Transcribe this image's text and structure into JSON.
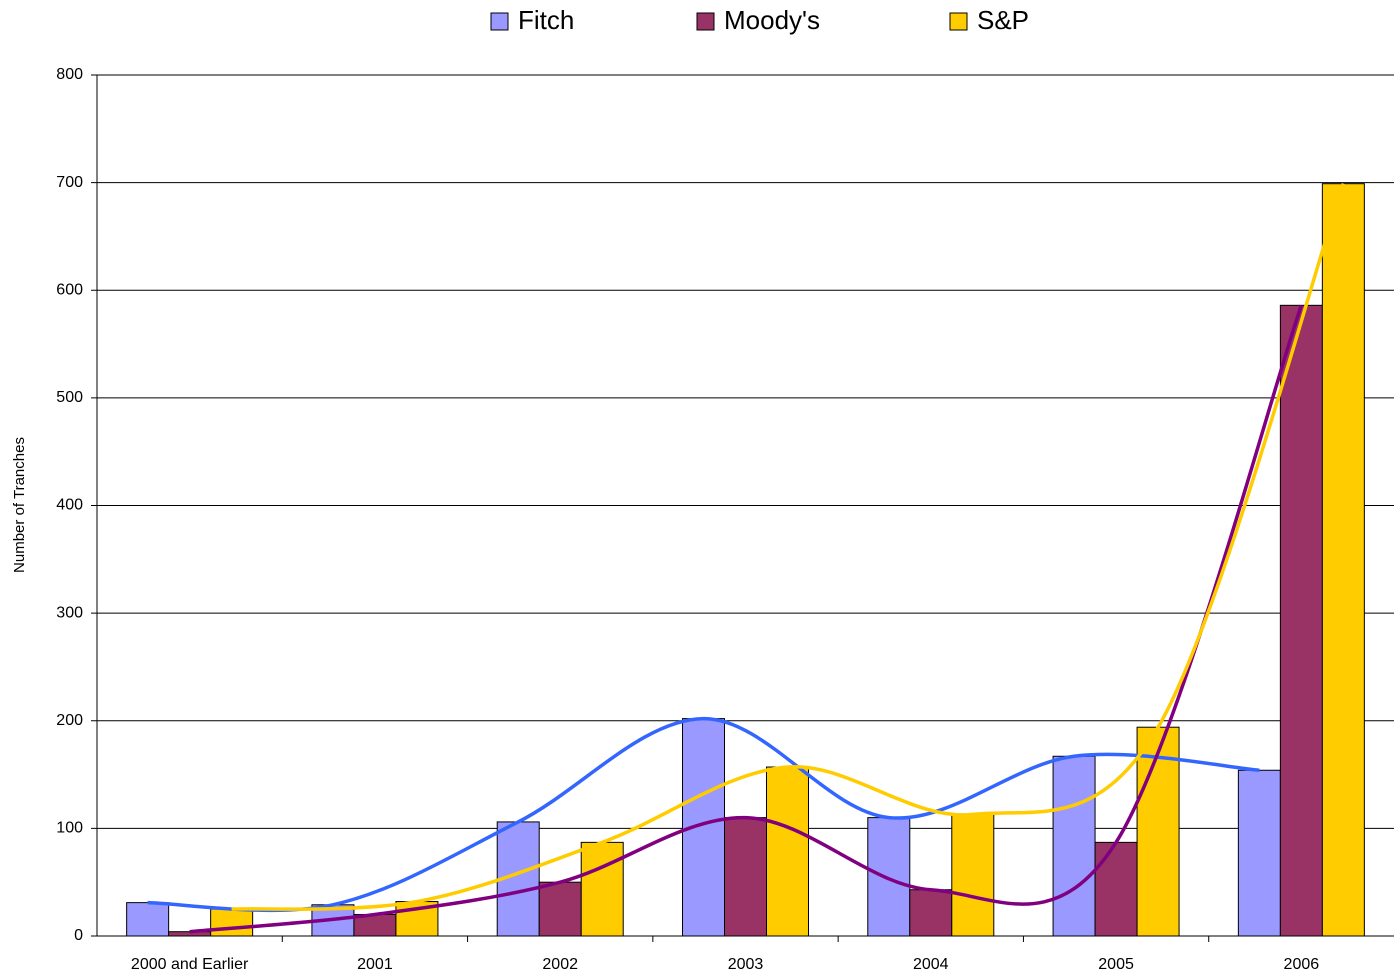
{
  "chart_data": {
    "type": "bar",
    "y_label": "Number of Tranches",
    "categories": [
      "2000 and Earlier",
      "2001",
      "2002",
      "2003",
      "2004",
      "2005",
      "2006"
    ],
    "series": [
      {
        "name": "Fitch",
        "color": "#9999ff",
        "line_color": "#3366ff",
        "values": [
          31,
          29,
          106,
          202,
          110,
          167,
          154
        ]
      },
      {
        "name": "Moody's",
        "color": "#993366",
        "line_color": "#800080",
        "values": [
          4,
          20,
          50,
          110,
          43,
          87,
          586
        ]
      },
      {
        "name": "S&P",
        "color": "#ffcc00",
        "line_color": "#ffcc00",
        "values": [
          25,
          32,
          87,
          157,
          113,
          194,
          699
        ]
      }
    ],
    "smooth_trend_lines": true,
    "ylim": [
      0,
      800
    ],
    "yticks": [
      0,
      100,
      200,
      300,
      400,
      500,
      600,
      700,
      800
    ],
    "grid": true,
    "legend": "top"
  }
}
